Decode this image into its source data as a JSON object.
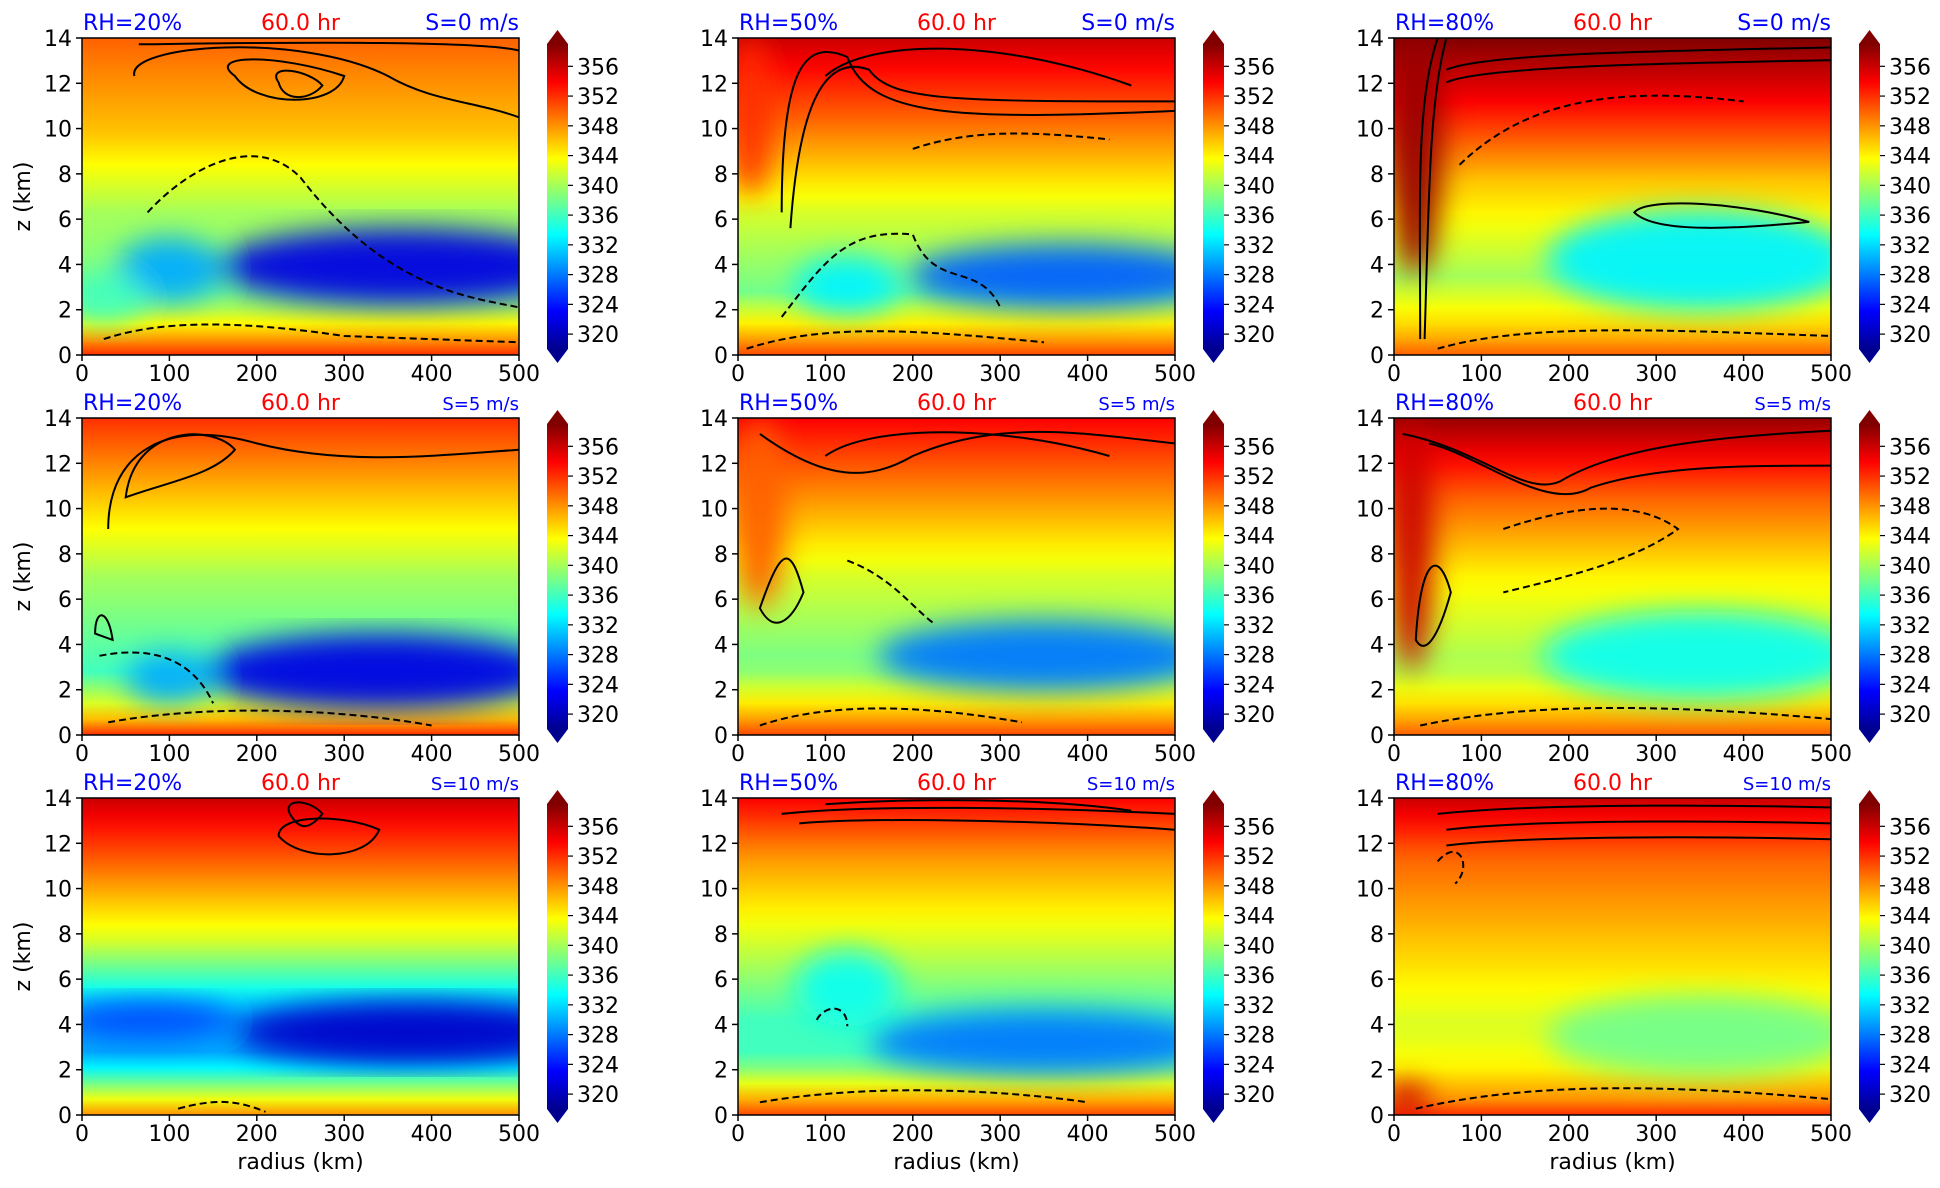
{
  "chart_data": {
    "type": "heatmap",
    "layout": "3x3 grid of contour panels",
    "x_range": [
      0,
      500
    ],
    "y_range": [
      0,
      14
    ],
    "x_ticks": [
      0,
      100,
      200,
      300,
      400,
      500
    ],
    "y_ticks": [
      0,
      2,
      4,
      6,
      8,
      10,
      12,
      14
    ],
    "xlabel": "radius (km)",
    "ylabel": "z (km)",
    "colorbar": {
      "ticks": [
        320,
        324,
        328,
        332,
        336,
        340,
        344,
        348,
        352,
        356
      ],
      "range": [
        318,
        359
      ],
      "extend": "both",
      "colormap": "jet"
    },
    "panels": [
      {
        "rh": "RH=20%",
        "time": "60.0 hr",
        "shear": "S=0 m/s"
      },
      {
        "rh": "RH=50%",
        "time": "60.0 hr",
        "shear": "S=0 m/s"
      },
      {
        "rh": "RH=80%",
        "time": "60.0 hr",
        "shear": "S=0 m/s"
      },
      {
        "rh": "RH=20%",
        "time": "60.0 hr",
        "shear": "S=5 m/s"
      },
      {
        "rh": "RH=50%",
        "time": "60.0 hr",
        "shear": "S=5 m/s"
      },
      {
        "rh": "RH=80%",
        "time": "60.0 hr",
        "shear": "S=5 m/s"
      },
      {
        "rh": "RH=20%",
        "time": "60.0 hr",
        "shear": "S=10 m/s"
      },
      {
        "rh": "RH=50%",
        "time": "60.0 hr",
        "shear": "S=10 m/s"
      },
      {
        "rh": "RH=80%",
        "time": "60.0 hr",
        "shear": "S=10 m/s"
      }
    ]
  },
  "colors": {
    "rh_label": "#0000ff",
    "time_label": "#ff0000",
    "shear_label": "#0000ff",
    "contour": "#000000"
  }
}
